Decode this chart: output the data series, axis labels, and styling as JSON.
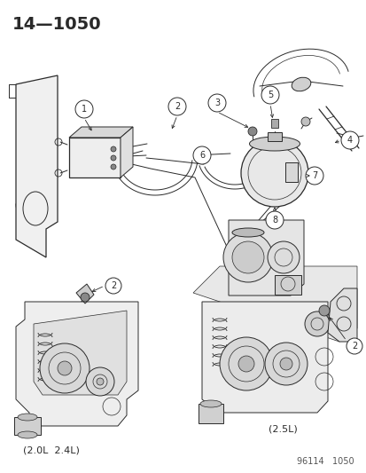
{
  "title_text": "14—1050",
  "watermark_text": "96114   1050",
  "caption_left_text": "(2.0L  2.4L)",
  "caption_right_text": "(2.5L)",
  "bg_color": "#ffffff",
  "fig_width": 4.14,
  "fig_height": 5.33,
  "dpi": 100,
  "line_color": "#2a2a2a",
  "gray_fill": "#b0b0b0",
  "light_gray": "#d8d8d8",
  "title_fontsize": 14,
  "caption_fontsize": 8,
  "watermark_fontsize": 7,
  "label_fontsize": 7
}
